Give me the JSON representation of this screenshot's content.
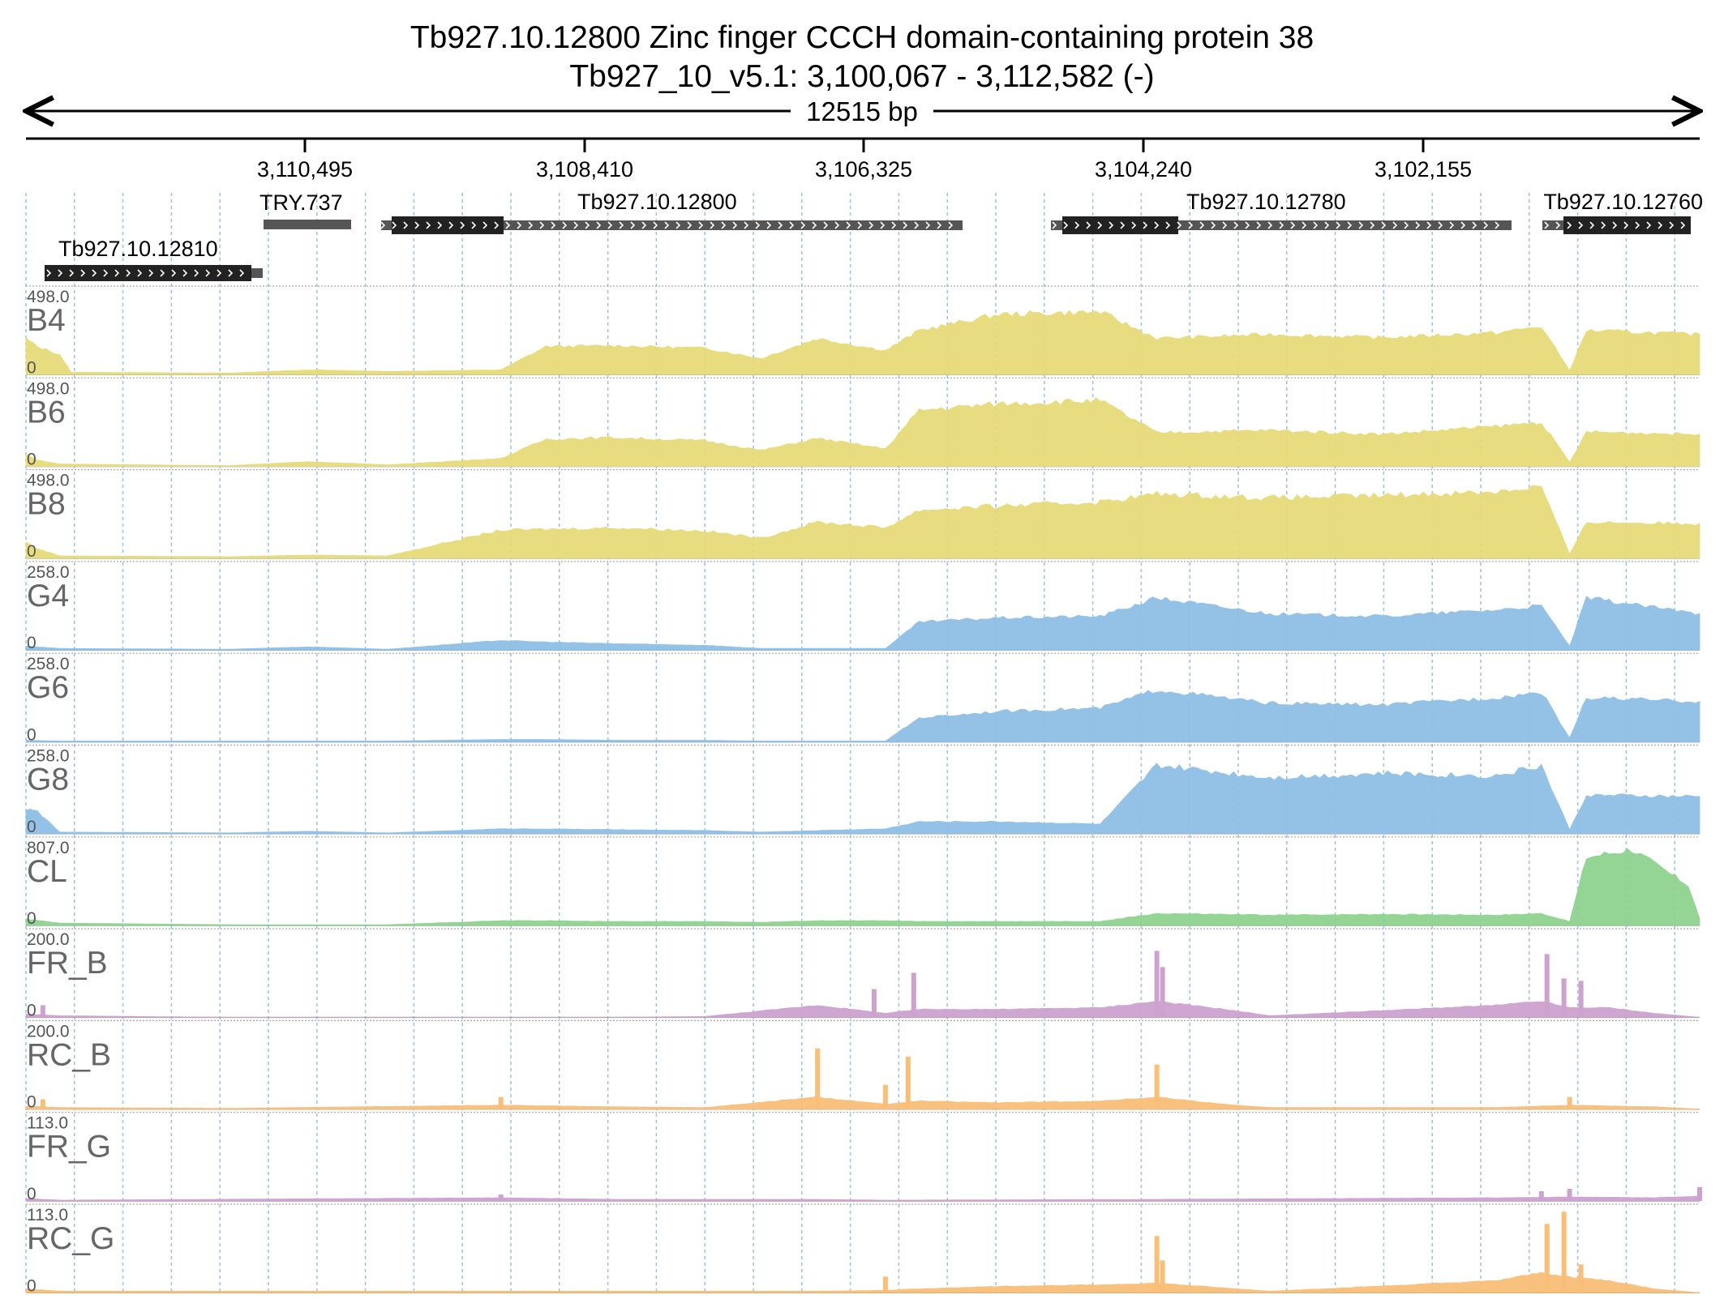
{
  "header": {
    "title_line1": "Tb927.10.12800  Zinc finger CCCH domain-containing protein 38",
    "title_line2": "Tb927_10_v5.1: 3,100,067 - 3,112,582 (-)",
    "span_label": "12515 bp"
  },
  "ruler": {
    "ticks": [
      "3,110,495",
      "3,108,410",
      "3,106,325",
      "3,104,240",
      "3,102,155"
    ]
  },
  "genes": [
    {
      "name": "Tb927.10.12810",
      "label": "Tb927.10.12810"
    },
    {
      "name": "TRY.737",
      "label": "TRY.737"
    },
    {
      "name": "Tb927.10.12800",
      "label": "Tb927.10.12800"
    },
    {
      "name": "Tb927.10.12780",
      "label": "Tb927.10.12780"
    },
    {
      "name": "Tb927.10.12760",
      "label": "Tb927.10.12760"
    }
  ],
  "colors": {
    "yellow": "#e6dc7a",
    "blue": "#8fbfe6",
    "green": "#8fd28f",
    "purple": "#cda2cf",
    "orange": "#f9be78",
    "gene_dark": "#222222",
    "gene_light": "#555555",
    "grid": "#9ec4e8"
  },
  "chart_data": {
    "type": "area",
    "description_type": "genome browser coverage tracks",
    "x_direction": "reverse",
    "xlim": [
      3112582,
      3100067
    ],
    "tracks": [
      {
        "name": "B4",
        "max": "498.0",
        "min": "0",
        "color": "yellow",
        "profile": [
          [
            0,
            0.45
          ],
          [
            10,
            0.35
          ],
          [
            30,
            0.25
          ],
          [
            40,
            0.03
          ],
          [
            180,
            0.02
          ],
          [
            250,
            0.06
          ],
          [
            320,
            0.04
          ],
          [
            420,
            0.06
          ],
          [
            460,
            0.35
          ],
          [
            520,
            0.36
          ],
          [
            600,
            0.33
          ],
          [
            650,
            0.2
          ],
          [
            700,
            0.45
          ],
          [
            760,
            0.3
          ],
          [
            790,
            0.55
          ],
          [
            860,
            0.75
          ],
          [
            950,
            0.78
          ],
          [
            1000,
            0.45
          ],
          [
            1100,
            0.5
          ],
          [
            1200,
            0.46
          ],
          [
            1300,
            0.52
          ],
          [
            1340,
            0.6
          ],
          [
            1365,
            0.05
          ],
          [
            1380,
            0.55
          ],
          [
            1480,
            0.5
          ]
        ]
      },
      {
        "name": "B6",
        "max": "498.0",
        "min": "0",
        "color": "yellow",
        "profile": [
          [
            0,
            0.15
          ],
          [
            10,
            0.08
          ],
          [
            30,
            0.03
          ],
          [
            180,
            0.01
          ],
          [
            250,
            0.06
          ],
          [
            320,
            0.02
          ],
          [
            420,
            0.1
          ],
          [
            460,
            0.34
          ],
          [
            520,
            0.36
          ],
          [
            600,
            0.32
          ],
          [
            650,
            0.2
          ],
          [
            700,
            0.35
          ],
          [
            760,
            0.22
          ],
          [
            790,
            0.7
          ],
          [
            860,
            0.78
          ],
          [
            950,
            0.82
          ],
          [
            1000,
            0.42
          ],
          [
            1100,
            0.45
          ],
          [
            1200,
            0.4
          ],
          [
            1300,
            0.5
          ],
          [
            1340,
            0.55
          ],
          [
            1365,
            0.05
          ],
          [
            1380,
            0.43
          ],
          [
            1480,
            0.4
          ]
        ]
      },
      {
        "name": "B8",
        "max": "498.0",
        "min": "0",
        "color": "yellow",
        "profile": [
          [
            0,
            0.2
          ],
          [
            10,
            0.12
          ],
          [
            30,
            0.03
          ],
          [
            180,
            0.02
          ],
          [
            250,
            0.04
          ],
          [
            320,
            0.03
          ],
          [
            420,
            0.35
          ],
          [
            460,
            0.36
          ],
          [
            520,
            0.38
          ],
          [
            600,
            0.34
          ],
          [
            650,
            0.25
          ],
          [
            700,
            0.45
          ],
          [
            760,
            0.38
          ],
          [
            790,
            0.6
          ],
          [
            860,
            0.65
          ],
          [
            950,
            0.7
          ],
          [
            1000,
            0.8
          ],
          [
            1100,
            0.75
          ],
          [
            1200,
            0.78
          ],
          [
            1300,
            0.83
          ],
          [
            1340,
            0.9
          ],
          [
            1365,
            0.05
          ],
          [
            1380,
            0.45
          ],
          [
            1480,
            0.43
          ]
        ]
      },
      {
        "name": "G4",
        "max": "258.0",
        "min": "0",
        "color": "blue",
        "profile": [
          [
            0,
            0.05
          ],
          [
            30,
            0.02
          ],
          [
            180,
            0.01
          ],
          [
            250,
            0.04
          ],
          [
            320,
            0.01
          ],
          [
            420,
            0.12
          ],
          [
            460,
            0.1
          ],
          [
            520,
            0.08
          ],
          [
            600,
            0.06
          ],
          [
            650,
            0.02
          ],
          [
            700,
            0.02
          ],
          [
            760,
            0.02
          ],
          [
            790,
            0.35
          ],
          [
            860,
            0.4
          ],
          [
            950,
            0.42
          ],
          [
            1000,
            0.65
          ],
          [
            1100,
            0.45
          ],
          [
            1200,
            0.42
          ],
          [
            1300,
            0.5
          ],
          [
            1340,
            0.55
          ],
          [
            1365,
            0.05
          ],
          [
            1380,
            0.65
          ],
          [
            1480,
            0.45
          ]
        ]
      },
      {
        "name": "G6",
        "max": "258.0",
        "min": "0",
        "color": "blue",
        "profile": [
          [
            0,
            0.02
          ],
          [
            30,
            0.01
          ],
          [
            180,
            0.01
          ],
          [
            250,
            0.01
          ],
          [
            320,
            0.01
          ],
          [
            420,
            0.03
          ],
          [
            460,
            0.03
          ],
          [
            520,
            0.02
          ],
          [
            600,
            0.02
          ],
          [
            650,
            0.01
          ],
          [
            700,
            0.01
          ],
          [
            760,
            0.01
          ],
          [
            790,
            0.3
          ],
          [
            860,
            0.38
          ],
          [
            950,
            0.42
          ],
          [
            1000,
            0.65
          ],
          [
            1100,
            0.48
          ],
          [
            1200,
            0.46
          ],
          [
            1300,
            0.55
          ],
          [
            1340,
            0.62
          ],
          [
            1365,
            0.05
          ],
          [
            1380,
            0.55
          ],
          [
            1480,
            0.5
          ]
        ]
      },
      {
        "name": "G8",
        "max": "258.0",
        "min": "0",
        "color": "blue",
        "profile": [
          [
            0,
            0.3
          ],
          [
            10,
            0.28
          ],
          [
            30,
            0.02
          ],
          [
            180,
            0.01
          ],
          [
            250,
            0.03
          ],
          [
            320,
            0.01
          ],
          [
            420,
            0.06
          ],
          [
            460,
            0.06
          ],
          [
            520,
            0.05
          ],
          [
            600,
            0.04
          ],
          [
            650,
            0.02
          ],
          [
            700,
            0.04
          ],
          [
            760,
            0.06
          ],
          [
            790,
            0.15
          ],
          [
            860,
            0.15
          ],
          [
            950,
            0.12
          ],
          [
            1000,
            0.85
          ],
          [
            1100,
            0.7
          ],
          [
            1200,
            0.75
          ],
          [
            1300,
            0.72
          ],
          [
            1340,
            0.85
          ],
          [
            1365,
            0.05
          ],
          [
            1380,
            0.48
          ],
          [
            1480,
            0.46
          ]
        ]
      },
      {
        "name": "CL",
        "max": "807.0",
        "min": "0",
        "color": "green",
        "profile": [
          [
            0,
            0.08
          ],
          [
            30,
            0.03
          ],
          [
            180,
            0.01
          ],
          [
            250,
            0.01
          ],
          [
            320,
            0.01
          ],
          [
            420,
            0.06
          ],
          [
            460,
            0.06
          ],
          [
            520,
            0.05
          ],
          [
            600,
            0.05
          ],
          [
            650,
            0.04
          ],
          [
            700,
            0.06
          ],
          [
            760,
            0.06
          ],
          [
            790,
            0.05
          ],
          [
            860,
            0.05
          ],
          [
            950,
            0.05
          ],
          [
            1000,
            0.15
          ],
          [
            1100,
            0.13
          ],
          [
            1200,
            0.14
          ],
          [
            1300,
            0.13
          ],
          [
            1340,
            0.15
          ],
          [
            1365,
            0.05
          ],
          [
            1380,
            0.85
          ],
          [
            1420,
            0.95
          ],
          [
            1470,
            0.5
          ],
          [
            1480,
            0.08
          ]
        ]
      },
      {
        "name": "FR_B",
        "max": "200.0",
        "min": "0",
        "color": "purple",
        "profile": [
          [
            0,
            0.04
          ],
          [
            30,
            0.02
          ],
          [
            180,
            0.0
          ],
          [
            420,
            0.0
          ],
          [
            520,
            0.0
          ],
          [
            600,
            0.01
          ],
          [
            700,
            0.15
          ],
          [
            760,
            0.05
          ],
          [
            790,
            0.1
          ],
          [
            860,
            0.1
          ],
          [
            950,
            0.12
          ],
          [
            1000,
            0.2
          ],
          [
            1060,
            0.1
          ],
          [
            1100,
            0.02
          ],
          [
            1300,
            0.15
          ],
          [
            1340,
            0.2
          ],
          [
            1365,
            0.12
          ],
          [
            1400,
            0.12
          ],
          [
            1440,
            0.05
          ],
          [
            1480,
            0.0
          ]
        ],
        "spikes": [
          [
            15,
            0.15
          ],
          [
            750,
            0.35
          ],
          [
            785,
            0.55
          ],
          [
            1000,
            0.82
          ],
          [
            1005,
            0.62
          ],
          [
            1345,
            0.78
          ],
          [
            1360,
            0.48
          ],
          [
            1375,
            0.45
          ]
        ]
      },
      {
        "name": "RC_B",
        "max": "200.0",
        "min": "0",
        "color": "orange",
        "profile": [
          [
            0,
            0.04
          ],
          [
            30,
            0.02
          ],
          [
            180,
            0.01
          ],
          [
            420,
            0.05
          ],
          [
            520,
            0.03
          ],
          [
            600,
            0.02
          ],
          [
            700,
            0.15
          ],
          [
            760,
            0.06
          ],
          [
            790,
            0.1
          ],
          [
            860,
            0.08
          ],
          [
            950,
            0.1
          ],
          [
            1000,
            0.15
          ],
          [
            1060,
            0.06
          ],
          [
            1100,
            0.02
          ],
          [
            1300,
            0.02
          ],
          [
            1365,
            0.05
          ],
          [
            1440,
            0.03
          ],
          [
            1480,
            0.0
          ]
        ],
        "spikes": [
          [
            15,
            0.12
          ],
          [
            420,
            0.15
          ],
          [
            700,
            0.75
          ],
          [
            760,
            0.3
          ],
          [
            780,
            0.65
          ],
          [
            1000,
            0.55
          ],
          [
            1365,
            0.15
          ]
        ]
      },
      {
        "name": "FR_G",
        "max": "113.0",
        "min": "0",
        "color": "purple",
        "profile": [
          [
            0,
            0.03
          ],
          [
            30,
            0.01
          ],
          [
            420,
            0.04
          ],
          [
            520,
            0.02
          ],
          [
            700,
            0.02
          ],
          [
            760,
            0.01
          ],
          [
            1000,
            0.02
          ],
          [
            1300,
            0.04
          ],
          [
            1365,
            0.05
          ],
          [
            1440,
            0.04
          ],
          [
            1480,
            0.06
          ]
        ],
        "spikes": [
          [
            420,
            0.08
          ],
          [
            1340,
            0.12
          ],
          [
            1365,
            0.15
          ],
          [
            1480,
            0.17
          ]
        ]
      },
      {
        "name": "RC_G",
        "max": "113.0",
        "min": "0",
        "color": "orange",
        "profile": [
          [
            0,
            0.05
          ],
          [
            30,
            0.02
          ],
          [
            700,
            0.02
          ],
          [
            760,
            0.03
          ],
          [
            790,
            0.05
          ],
          [
            860,
            0.08
          ],
          [
            950,
            0.1
          ],
          [
            1000,
            0.12
          ],
          [
            1060,
            0.06
          ],
          [
            1100,
            0.02
          ],
          [
            1300,
            0.15
          ],
          [
            1340,
            0.25
          ],
          [
            1365,
            0.2
          ],
          [
            1400,
            0.15
          ],
          [
            1440,
            0.05
          ],
          [
            1480,
            0.0
          ]
        ],
        "spikes": [
          [
            760,
            0.2
          ],
          [
            1000,
            0.7
          ],
          [
            1005,
            0.4
          ],
          [
            1345,
            0.85
          ],
          [
            1360,
            1.0
          ],
          [
            1375,
            0.35
          ]
        ]
      }
    ]
  }
}
